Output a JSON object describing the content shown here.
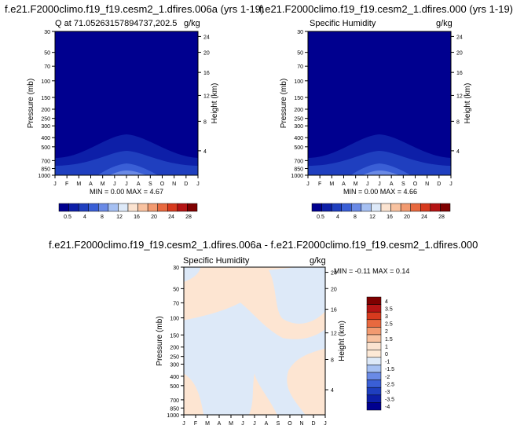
{
  "panels": [
    {
      "title": "f.e21.F2000climo.f19_f19.cesm2_1.dfires.006a (yrs 1-19)",
      "subtitle": "Q at 71.05263157894737,202.5",
      "units": "g/kg",
      "minmax": "MIN =   0.00 MAX =   4.67"
    },
    {
      "title": "f.e21.F2000climo.f19_f19.cesm2_1.dfires.000 (yrs 1-19)",
      "subtitle": "Specific Humidity",
      "units": "g/kg",
      "minmax": "MIN =   0.00 MAX =   4.66"
    },
    {
      "title": "f.e21.F2000climo.f19_f19.cesm2_1.dfires.006a - f.e21.F2000climo.f19_f19.cesm2_1.dfires.000",
      "subtitle": "Specific Humidity",
      "units": "g/kg",
      "minmax": "MIN =  -0.11 MAX =   0.14"
    }
  ],
  "chart_data": [
    {
      "type": "heatmap",
      "title": "f.e21.F2000climo.f19_f19.cesm2_1.dfires.006a (yrs 1-19)",
      "subtitle": "Q at 71.05263157894737,202.5",
      "xlabel": "",
      "ylabel": "Pressure (mb)",
      "ylabel_right": "Height (km)",
      "x_ticks": [
        "J",
        "F",
        "M",
        "A",
        "M",
        "J",
        "J",
        "A",
        "S",
        "O",
        "N",
        "D",
        "J"
      ],
      "y_ticks": [
        "30",
        "50",
        "70",
        "100",
        "150",
        "200",
        "250",
        "300",
        "400",
        "500",
        "700",
        "850",
        "1000"
      ],
      "y_ticks_right": [
        "24",
        "20",
        "16",
        "12",
        "8",
        "4"
      ],
      "min": 0.0,
      "max": 4.67,
      "colorbar_labels": [
        "0.5",
        "4",
        "8",
        "12",
        "16",
        "20",
        "24",
        "28"
      ],
      "colorbar_colors": [
        "#00008f",
        "#0d1fa8",
        "#1f3fbf",
        "#3a5fd6",
        "#6a8ae6",
        "#a6c0f2",
        "#dde9f8",
        "#fbe3d0",
        "#f8c2a0",
        "#f29a70",
        "#e8693f",
        "#d73a1e",
        "#b51414",
        "#7f0000"
      ]
    },
    {
      "type": "heatmap",
      "title": "f.e21.F2000climo.f19_f19.cesm2_1.dfires.000 (yrs 1-19)",
      "subtitle": "Specific Humidity",
      "xlabel": "",
      "ylabel": "Pressure (mb)",
      "ylabel_right": "Height (km)",
      "x_ticks": [
        "J",
        "F",
        "M",
        "A",
        "M",
        "J",
        "J",
        "A",
        "S",
        "O",
        "N",
        "D",
        "J"
      ],
      "y_ticks": [
        "30",
        "50",
        "70",
        "100",
        "150",
        "200",
        "250",
        "300",
        "400",
        "500",
        "700",
        "850",
        "1000"
      ],
      "y_ticks_right": [
        "24",
        "20",
        "16",
        "12",
        "8",
        "4"
      ],
      "min": 0.0,
      "max": 4.66,
      "colorbar_labels": [
        "0.5",
        "4",
        "8",
        "12",
        "16",
        "20",
        "24",
        "28"
      ],
      "colorbar_colors": [
        "#00008f",
        "#0d1fa8",
        "#1f3fbf",
        "#3a5fd6",
        "#6a8ae6",
        "#a6c0f2",
        "#dde9f8",
        "#fbe3d0",
        "#f8c2a0",
        "#f29a70",
        "#e8693f",
        "#d73a1e",
        "#b51414",
        "#7f0000"
      ]
    },
    {
      "type": "heatmap",
      "title": "f.e21.F2000climo.f19_f19.cesm2_1.dfires.006a - f.e21.F2000climo.f19_f19.cesm2_1.dfires.000",
      "subtitle": "Specific Humidity",
      "xlabel": "",
      "ylabel": "Pressure (mb)",
      "ylabel_right": "Height (km)",
      "x_ticks": [
        "J",
        "F",
        "M",
        "A",
        "M",
        "J",
        "J",
        "A",
        "S",
        "O",
        "N",
        "D",
        "J"
      ],
      "y_ticks": [
        "30",
        "50",
        "70",
        "100",
        "150",
        "200",
        "250",
        "300",
        "400",
        "500",
        "700",
        "850",
        "1000"
      ],
      "y_ticks_right": [
        "24",
        "20",
        "16",
        "12",
        "8",
        "4"
      ],
      "min": -0.11,
      "max": 0.14,
      "colorbar_labels": [
        "4",
        "3.5",
        "3",
        "2.5",
        "2",
        "1.5",
        "1",
        "0",
        "-1",
        "-1.5",
        "-2",
        "-2.5",
        "-3",
        "-3.5",
        "-4"
      ],
      "colorbar_colors": [
        "#7f0000",
        "#b51414",
        "#d73a1e",
        "#e8693f",
        "#f29a70",
        "#f8c2a0",
        "#fbe3d0",
        "#fde9d6",
        "#dde9f8",
        "#a6c0f2",
        "#6a8ae6",
        "#3a5fd6",
        "#1f3fbf",
        "#0d1fa8",
        "#00008f"
      ]
    }
  ]
}
